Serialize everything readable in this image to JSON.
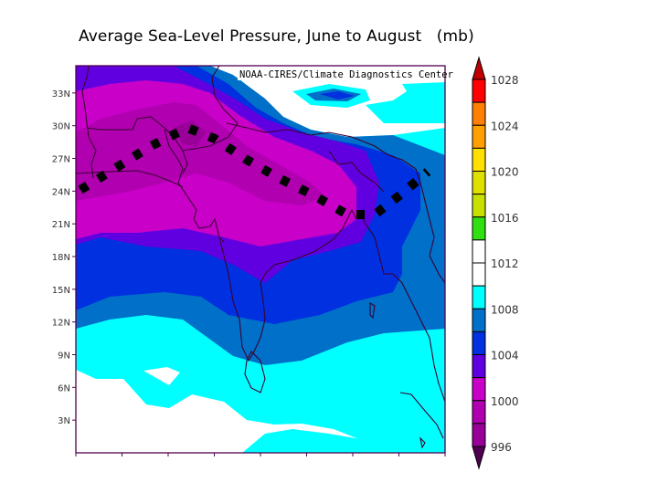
{
  "title": "Average Sea-Level Pressure, June to August   (mb)",
  "credit": "NOAA-CIRES/Climate Diagnostics Center",
  "units": "mb",
  "latitude_axis": {
    "labels": [
      "33N",
      "30N",
      "27N",
      "24N",
      "21N",
      "18N",
      "15N",
      "12N",
      "9N",
      "6N",
      "3N"
    ],
    "values": [
      33,
      30,
      27,
      24,
      21,
      18,
      15,
      12,
      9,
      6,
      3
    ],
    "range": [
      0,
      35.5
    ]
  },
  "longitude_axis": {
    "tick_count": 9,
    "labels_shown": false
  },
  "colorbar": {
    "labels": [
      "1028",
      "1024",
      "1020",
      "1016",
      "1012",
      "1008",
      "1004",
      "1000",
      "996"
    ],
    "bins": [
      {
        "range": ">1028",
        "color": "#c00000"
      },
      {
        "range": "1026-1028",
        "color": "#ff0000"
      },
      {
        "range": "1024-1026",
        "color": "#ff8000"
      },
      {
        "range": "1022-1024",
        "color": "#ffa000"
      },
      {
        "range": "1020-1022",
        "color": "#ffe000"
      },
      {
        "range": "1018-1020",
        "color": "#e0e000"
      },
      {
        "range": "1016-1018",
        "color": "#c8e000"
      },
      {
        "range": "1014-1016",
        "color": "#30e010"
      },
      {
        "range": "1012-1014",
        "color": "#ffffff"
      },
      {
        "range": "1010-1012",
        "color": "#ffffff"
      },
      {
        "range": "1008-1010",
        "color": "#00ffff"
      },
      {
        "range": "1006-1008",
        "color": "#0070c8"
      },
      {
        "range": "1004-1006",
        "color": "#0030e0"
      },
      {
        "range": "1002-1004",
        "color": "#6000e0"
      },
      {
        "range": "1000-1002",
        "color": "#c800c8"
      },
      {
        "range": "998-1000",
        "color": "#b000b0"
      },
      {
        "range": "996-998",
        "color": "#980098"
      },
      {
        "range": "<996",
        "color": "#500050"
      }
    ]
  },
  "monsoon_trough_line": {
    "description": "Dotted black line marking the monsoon trough",
    "style": "dotted-black"
  },
  "colors": {
    "border": "#500050",
    "coastline": "#3a0030",
    "trough": "#000000"
  }
}
